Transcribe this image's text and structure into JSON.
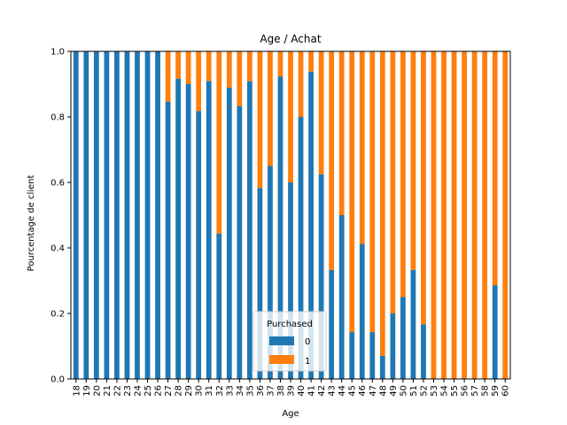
{
  "chart_data": {
    "type": "bar",
    "stacked": true,
    "title": "Age / Achat",
    "xlabel": "Age",
    "ylabel": "Pourcentage de client",
    "ylim": [
      0,
      1
    ],
    "yticks": [
      "0.0",
      "0.2",
      "0.4",
      "0.6",
      "0.8",
      "1.0"
    ],
    "categories": [
      "18",
      "19",
      "20",
      "21",
      "22",
      "23",
      "24",
      "25",
      "26",
      "27",
      "28",
      "29",
      "30",
      "31",
      "32",
      "33",
      "34",
      "35",
      "36",
      "37",
      "38",
      "39",
      "40",
      "41",
      "42",
      "43",
      "44",
      "45",
      "46",
      "47",
      "48",
      "49",
      "50",
      "51",
      "52",
      "53",
      "54",
      "55",
      "56",
      "57",
      "58",
      "59",
      "60"
    ],
    "legend": {
      "title": "Purchased",
      "position": "lower center"
    },
    "grid": false,
    "series": [
      {
        "name": "0",
        "color": "#1f77b4",
        "values": [
          1,
          1,
          1,
          1,
          1,
          1,
          1,
          1,
          1,
          0.846,
          0.917,
          0.9,
          0.818,
          0.909,
          0.444,
          0.889,
          0.833,
          0.909,
          0.583,
          0.65,
          0.923,
          0.6,
          0.8,
          0.938,
          0.625,
          0.333,
          0.5,
          0.143,
          0.412,
          0.143,
          0.071,
          0.2,
          0.25,
          0.333,
          0.167,
          0,
          0,
          0,
          0,
          0,
          0,
          0.286,
          0
        ]
      },
      {
        "name": "1",
        "color": "#ff7f0e",
        "values": [
          0,
          0,
          0,
          0,
          0,
          0,
          0,
          0,
          0,
          0.154,
          0.083,
          0.1,
          0.182,
          0.091,
          0.556,
          0.111,
          0.167,
          0.091,
          0.417,
          0.35,
          0.077,
          0.4,
          0.2,
          0.062,
          0.375,
          0.667,
          0.5,
          0.857,
          0.588,
          0.857,
          0.929,
          0.8,
          0.75,
          0.667,
          0.833,
          1,
          1,
          1,
          1,
          1,
          1,
          0.714,
          1
        ]
      }
    ]
  }
}
